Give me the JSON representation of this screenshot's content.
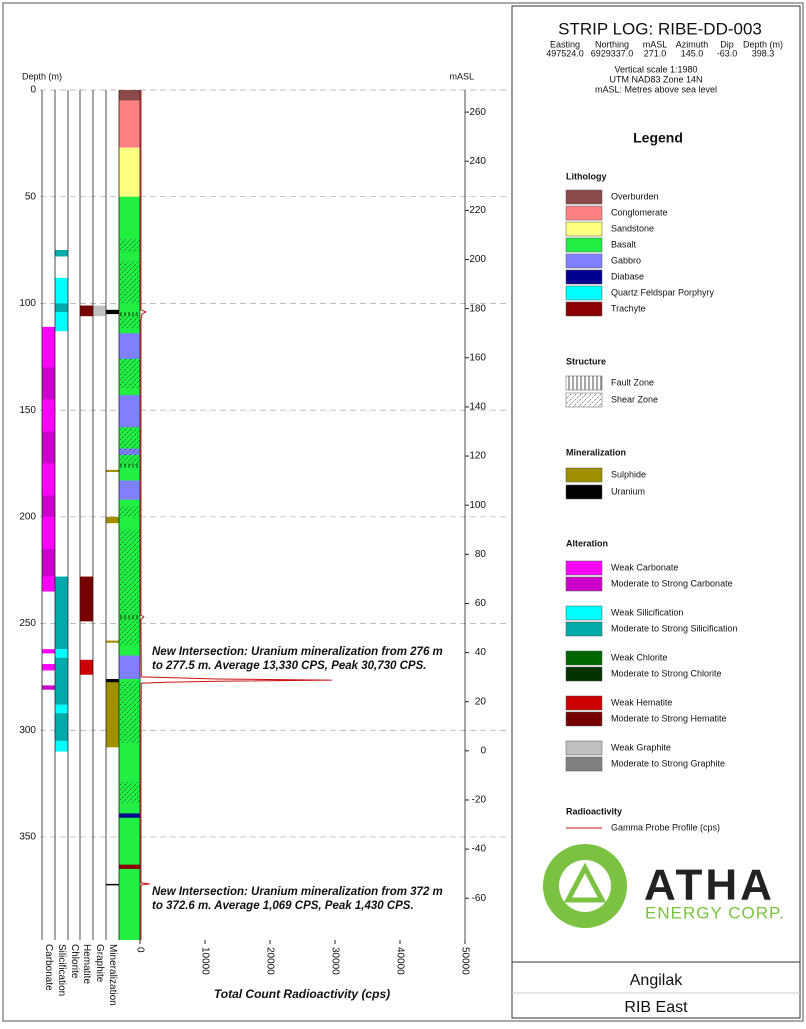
{
  "header": {
    "title": "STRIP LOG: RIBE-DD-003",
    "columns": [
      "Easting",
      "Northing",
      "mASL",
      "Azimuth",
      "Dip",
      "Depth (m)"
    ],
    "values": [
      "497524.0",
      "6929337.0",
      "271.0",
      "145.0",
      "-63.0",
      "398.3"
    ],
    "notes": [
      "Vertical scale 1:1980",
      "UTM NAD83 Zone 14N",
      "mASL: Metres above sea level"
    ]
  },
  "chart_data": {
    "type": "striplog",
    "y_label": "Depth (m)",
    "ylim": [
      0,
      398.3
    ],
    "yticks": [
      0,
      50,
      100,
      150,
      200,
      250,
      300,
      350
    ],
    "y2_label": "mASL",
    "y2lim": [
      269,
      -77
    ],
    "y2ticks": [
      260,
      240,
      220,
      200,
      180,
      160,
      140,
      120,
      100,
      80,
      60,
      40,
      20,
      0,
      -20,
      -40,
      -60
    ],
    "x_label": "Total Count Radioactivity (cps)",
    "xlim": [
      0,
      50000
    ],
    "xticks": [
      0,
      10000,
      20000,
      30000,
      40000,
      50000
    ],
    "grid": true,
    "columns": [
      "Carbonate",
      "Silicification",
      "Chlorite",
      "Hematite",
      "Graphite",
      "Mineralization"
    ],
    "legend_title": "Legend",
    "lithology_title": "Lithology",
    "lithology": [
      {
        "name": "Overburden",
        "color": "#8b4a4a",
        "intervals": [
          [
            0,
            5
          ]
        ]
      },
      {
        "name": "Conglomerate",
        "color": "#ff8080",
        "intervals": [
          [
            5,
            27
          ]
        ]
      },
      {
        "name": "Sandstone",
        "color": "#ffff80",
        "intervals": [
          [
            27,
            50
          ]
        ]
      },
      {
        "name": "Basalt",
        "color": "#22ee44",
        "intervals": [
          [
            50,
            398.3
          ]
        ]
      },
      {
        "name": "Gabbro",
        "color": "#8080ff",
        "intervals": [
          [
            114,
            126
          ],
          [
            143,
            158
          ],
          [
            168,
            171
          ],
          [
            183,
            192
          ],
          [
            265,
            276
          ]
        ]
      },
      {
        "name": "Diabase",
        "color": "#000090",
        "intervals": [
          [
            339,
            341
          ]
        ]
      },
      {
        "name": "Quartz Feldspar Porphyry",
        "color": "#00ffff",
        "intervals": []
      },
      {
        "name": "Trachyte",
        "color": "#8b0000",
        "intervals": [
          [
            363,
            365
          ]
        ]
      }
    ],
    "structure_title": "Structure",
    "structure": [
      {
        "name": "Fault Zone",
        "pattern": "vertical",
        "intervals": [
          [
            104,
            106
          ],
          [
            175,
            177
          ],
          [
            246,
            248
          ]
        ]
      },
      {
        "name": "Shear Zone",
        "pattern": "diagonal",
        "intervals": [
          [
            70,
            76
          ],
          [
            80,
            100
          ],
          [
            105,
            112
          ],
          [
            126,
            140
          ],
          [
            158,
            176
          ],
          [
            195,
            200
          ],
          [
            206,
            260
          ],
          [
            277,
            306
          ],
          [
            324,
            334
          ]
        ]
      }
    ],
    "mineralization_title": "Mineralization",
    "mineralization": [
      {
        "name": "Sulphide",
        "color": "#a09000",
        "intervals": [
          [
            178,
            179
          ],
          [
            200,
            203
          ],
          [
            258,
            259
          ],
          [
            276,
            308
          ]
        ]
      },
      {
        "name": "Uranium",
        "color": "#000000",
        "intervals": [
          [
            103,
            105
          ],
          [
            276,
            277.5
          ],
          [
            372,
            372.6
          ]
        ]
      }
    ],
    "alteration_title": "Alteration",
    "alteration": [
      [
        {
          "name": "Weak Carbonate",
          "color": "#ff00ff",
          "intervals": [
            [
              111,
              235
            ],
            [
              262,
              264
            ],
            [
              269,
              272
            ]
          ]
        },
        {
          "name": "Moderate to Strong Carbonate",
          "color": "#cc00cc",
          "intervals": [
            [
              130,
              145
            ],
            [
              160,
              175
            ],
            [
              190,
              200
            ],
            [
              215,
              228
            ],
            [
              279,
              281
            ]
          ]
        }
      ],
      [
        {
          "name": "Weak Silicification",
          "color": "#00ffff",
          "intervals": [
            [
              88,
              113
            ],
            [
              305,
              310
            ],
            [
              262,
              266
            ],
            [
              288,
              292
            ]
          ]
        },
        {
          "name": "Moderate to Strong Silicification",
          "color": "#00aaaa",
          "intervals": [
            [
              75,
              78
            ],
            [
              100,
              104
            ],
            [
              228,
              262
            ],
            [
              266,
              288
            ],
            [
              292,
              305
            ]
          ]
        }
      ],
      [
        {
          "name": "Weak Chlorite",
          "color": "#006600",
          "intervals": []
        },
        {
          "name": "Moderate to Strong Chlorite",
          "color": "#003300",
          "intervals": []
        }
      ],
      [
        {
          "name": "Weak Hematite",
          "color": "#cc0000",
          "intervals": [
            [
              267,
              274
            ]
          ]
        },
        {
          "name": "Moderate to Strong Hematite",
          "color": "#770000",
          "intervals": [
            [
              101,
              106
            ],
            [
              228,
              249
            ]
          ]
        }
      ],
      [
        {
          "name": "Weak Graphite",
          "color": "#c0c0c0",
          "intervals": [
            [
              101,
              106
            ]
          ]
        },
        {
          "name": "Moderate to Strong Graphite",
          "color": "#808080",
          "intervals": []
        }
      ]
    ],
    "radioactivity_title": "Radioactivity",
    "gamma": {
      "name": "Gamma Probe Profile (cps)",
      "color": "#cc1111",
      "depth": [
        0,
        100,
        103,
        104,
        105,
        108,
        150,
        200,
        246,
        247,
        248,
        275,
        276,
        276.5,
        277,
        277.5,
        278,
        300,
        350,
        371.5,
        372,
        372.5,
        373,
        398.3
      ],
      "values": [
        150,
        150,
        150,
        900,
        300,
        150,
        150,
        150,
        150,
        600,
        150,
        200,
        12000,
        29500,
        13000,
        4000,
        200,
        150,
        150,
        150,
        1500,
        200,
        150,
        150
      ]
    },
    "annotations": [
      [
        "New Intersection: Uranium mineralization from 276 m",
        "to 277.5 m. Average 13,330 CPS, Peak 30,730 CPS."
      ],
      [
        "New Intersection: Uranium mineralization from 372 m",
        "to 372.6 m. Average 1,069 CPS, Peak 1,430 CPS."
      ]
    ]
  },
  "logo": {
    "name": "ATHA",
    "subtitle": "ENERGY CORP."
  },
  "footer": {
    "project": "Angilak",
    "area": "RIB East"
  }
}
